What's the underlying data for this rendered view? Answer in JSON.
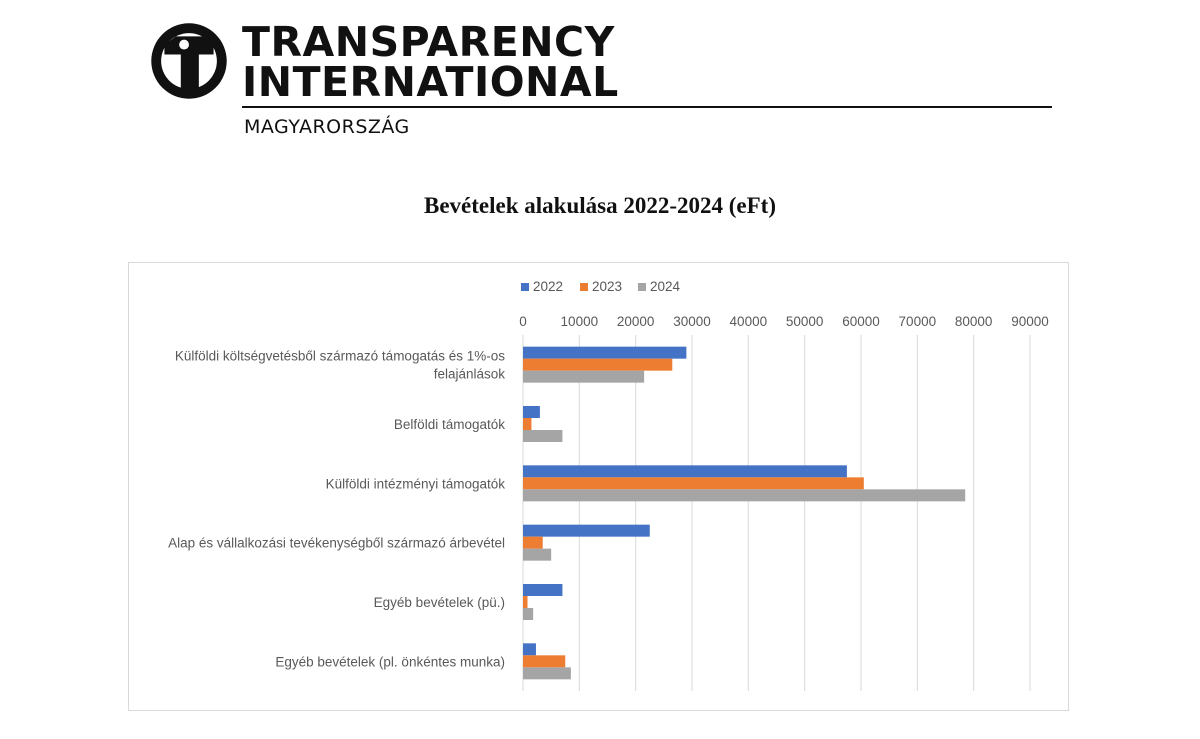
{
  "header": {
    "logo_line1": "TRANSPARENCY",
    "logo_line2": "INTERNATIONAL",
    "logo_country": "MAGYARORSZÁG"
  },
  "document": {
    "title": "Bevételek alakulása 2022-2024 (eFt)"
  },
  "colors": {
    "series_2022": "#4472c4",
    "series_2023": "#ed7d31",
    "series_2024": "#a5a5a5",
    "gridline": "#d9d9d9"
  },
  "chart_data": {
    "type": "bar",
    "orientation": "horizontal",
    "title": "",
    "legend_position": "top",
    "x_axis_position": "top",
    "grid": true,
    "xlim": [
      0,
      90000
    ],
    "x_ticks": [
      "0",
      "10000",
      "20000",
      "30000",
      "40000",
      "50000",
      "60000",
      "70000",
      "80000",
      "90000"
    ],
    "categories": [
      [
        "Külföldi költségvetésből származó támogatás és 1%-os",
        "felajánlások"
      ],
      [
        "Belföldi támogatók"
      ],
      [
        "Külföldi intézményi támogatók"
      ],
      [
        "Alap és vállalkozási tevékenységből származó árbevétel"
      ],
      [
        "Egyéb bevételek (pü.)"
      ],
      [
        "Egyéb bevételek (pl. önkéntes munka)"
      ]
    ],
    "series": [
      {
        "name": "2022",
        "values": [
          29000,
          3000,
          57500,
          22500,
          7000,
          2300
        ]
      },
      {
        "name": "2023",
        "values": [
          26500,
          1500,
          60500,
          3500,
          800,
          7500
        ]
      },
      {
        "name": "2024",
        "values": [
          21500,
          7000,
          78500,
          5000,
          1800,
          8500
        ]
      }
    ]
  }
}
